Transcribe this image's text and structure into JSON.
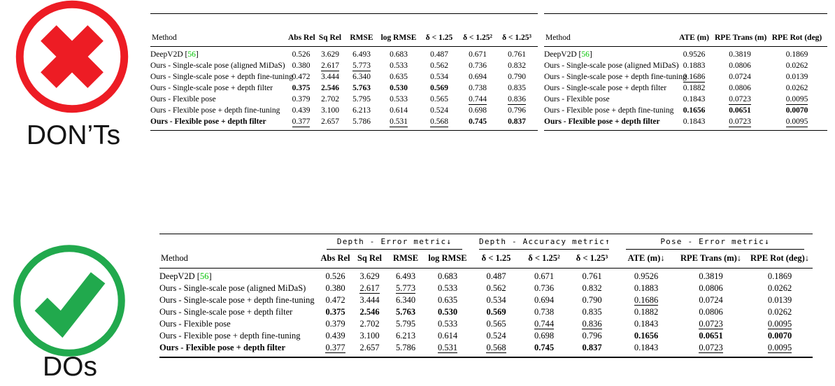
{
  "dont_section": {
    "label": "DON’Ts",
    "icon": "cross-circle-icon",
    "color": "#ed1c24"
  },
  "do_section": {
    "label": "DOs",
    "icon": "check-circle-icon",
    "color": "#21a94d"
  },
  "colors": {
    "cross_red": "#ed1c24",
    "check_green": "#21a94d",
    "citation_green": "#00c300"
  },
  "tables": {
    "dont_left": {
      "title": "depth-metrics-table",
      "method_header": "Method",
      "columns": [
        "Abs Rel",
        "Sq Rel",
        "RMSE",
        "log RMSE",
        "δ < 1.25",
        "δ < 1.25²",
        "δ < 1.25³"
      ],
      "value_keys": [
        "depth"
      ]
    },
    "dont_right": {
      "title": "pose-metrics-table",
      "method_header": "Method",
      "columns": [
        "ATE (m)",
        "RPE Trans (m)",
        "RPE Rot (deg)"
      ],
      "value_keys": [
        "pose"
      ]
    },
    "do_table": {
      "title": "merged-metrics-table",
      "method_header": "Method",
      "groups": [
        {
          "label": "Depth - Error metric↓",
          "span": 4
        },
        {
          "label": "Depth - Accuracy metric↑",
          "span": 3
        },
        {
          "label": "Pose - Error metric↓",
          "span": 3
        }
      ],
      "columns": [
        "Abs Rel",
        "Sq Rel",
        "RMSE",
        "log RMSE",
        "δ < 1.25",
        "δ < 1.25²",
        "δ < 1.25³",
        "ATE (m)↓",
        "RPE Trans (m)↓",
        "RPE Rot (deg)↓"
      ],
      "value_keys": [
        "depth",
        "pose"
      ]
    }
  },
  "rows": [
    {
      "method": {
        "pre": "DeepV2D [",
        "cite": "56",
        "post": "]"
      },
      "depth": [
        "0.526",
        "3.629",
        "6.493",
        "0.683",
        "0.487",
        "0.671",
        "0.761"
      ],
      "pose": [
        "0.9526",
        "0.3819",
        "0.1869"
      ]
    },
    {
      "method": {
        "pre": "Ours - Single-scale pose (aligned MiDaS)"
      },
      "depth": [
        "0.380",
        {
          "t": "2.617",
          "u": 1
        },
        {
          "t": "5.773",
          "u": 1
        },
        "0.533",
        "0.562",
        "0.736",
        "0.832"
      ],
      "pose": [
        "0.1883",
        "0.0806",
        "0.0262"
      ]
    },
    {
      "method": {
        "pre": "Ours - Single-scale pose + depth fine-tuning"
      },
      "depth": [
        "0.472",
        "3.444",
        "6.340",
        "0.635",
        "0.534",
        "0.694",
        "0.790"
      ],
      "pose": [
        {
          "t": "0.1686",
          "u": 1
        },
        "0.0724",
        "0.0139"
      ]
    },
    {
      "method": {
        "pre": "Ours - Single-scale pose + depth filter"
      },
      "depth": [
        {
          "t": "0.375",
          "b": 1
        },
        {
          "t": "2.546",
          "b": 1
        },
        {
          "t": "5.763",
          "b": 1
        },
        {
          "t": "0.530",
          "b": 1
        },
        {
          "t": "0.569",
          "b": 1
        },
        "0.738",
        "0.835"
      ],
      "pose": [
        "0.1882",
        "0.0806",
        "0.0262"
      ]
    },
    {
      "method": {
        "pre": "Ours - Flexible pose"
      },
      "depth": [
        "0.379",
        "2.702",
        "5.795",
        "0.533",
        "0.565",
        {
          "t": "0.744",
          "u": 1
        },
        {
          "t": "0.836",
          "u": 1
        }
      ],
      "pose": [
        "0.1843",
        {
          "t": "0.0723",
          "u": 1
        },
        {
          "t": "0.0095",
          "u": 1
        }
      ]
    },
    {
      "method": {
        "pre": "Ours - Flexible pose + depth fine-tuning"
      },
      "depth": [
        "0.439",
        "3.100",
        "6.213",
        "0.614",
        "0.524",
        "0.698",
        "0.796"
      ],
      "pose": [
        {
          "t": "0.1656",
          "b": 1
        },
        {
          "t": "0.0651",
          "b": 1
        },
        {
          "t": "0.0070",
          "b": 1
        }
      ]
    },
    {
      "method": {
        "pre": "Ours - Flexible pose + depth filter",
        "bold": true
      },
      "depth": [
        {
          "t": "0.377",
          "u": 1
        },
        "2.657",
        "5.786",
        {
          "t": "0.531",
          "u": 1
        },
        {
          "t": "0.568",
          "u": 1
        },
        {
          "t": "0.745",
          "b": 1
        },
        {
          "t": "0.837",
          "b": 1
        }
      ],
      "pose": [
        "0.1843",
        {
          "t": "0.0723",
          "u": 1
        },
        {
          "t": "0.0095",
          "u": 1
        }
      ]
    }
  ]
}
